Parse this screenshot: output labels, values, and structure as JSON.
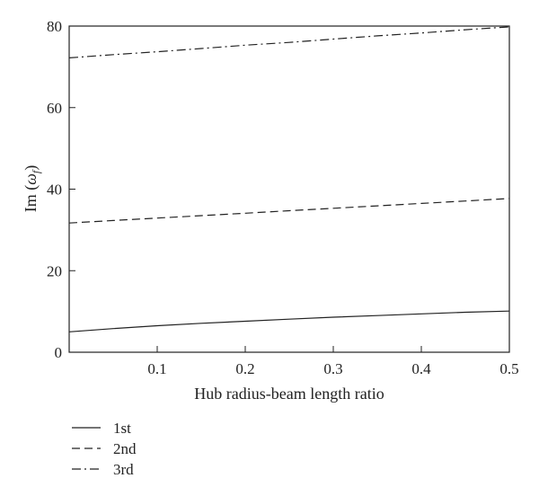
{
  "chart_data": {
    "type": "line",
    "xlabel": "Hub radius-beam length ratio",
    "ylabel_main": "Im (",
    "ylabel_symbol": "ω",
    "ylabel_subscript": "f",
    "ylabel_close": ")",
    "xlim": [
      0,
      0.5
    ],
    "ylim": [
      0,
      80
    ],
    "x_ticks": [
      0.1,
      0.2,
      0.3,
      0.4,
      0.5
    ],
    "x_tick_labels": [
      "0.1",
      "0.2",
      "0.3",
      "0.4",
      "0.5"
    ],
    "y_ticks": [
      0,
      20,
      40,
      60,
      80
    ],
    "y_tick_labels": [
      "0",
      "20",
      "40",
      "60",
      "80"
    ],
    "grid": false,
    "legend_position": "bottom-left",
    "x": [
      0,
      0.05,
      0.1,
      0.15,
      0.2,
      0.25,
      0.3,
      0.35,
      0.4,
      0.45,
      0.5
    ],
    "series": [
      {
        "name": "1st",
        "style": "solid",
        "values": [
          5.0,
          5.8,
          6.5,
          7.1,
          7.6,
          8.1,
          8.6,
          9.0,
          9.4,
          9.8,
          10.1
        ]
      },
      {
        "name": "2nd",
        "style": "dashed",
        "values": [
          31.7,
          32.3,
          32.9,
          33.5,
          34.1,
          34.7,
          35.3,
          35.9,
          36.5,
          37.1,
          37.7
        ]
      },
      {
        "name": "3rd",
        "style": "dashdot",
        "values": [
          72.2,
          73.0,
          73.7,
          74.5,
          75.3,
          76.0,
          76.8,
          77.6,
          78.3,
          79.1,
          79.8
        ]
      }
    ]
  }
}
